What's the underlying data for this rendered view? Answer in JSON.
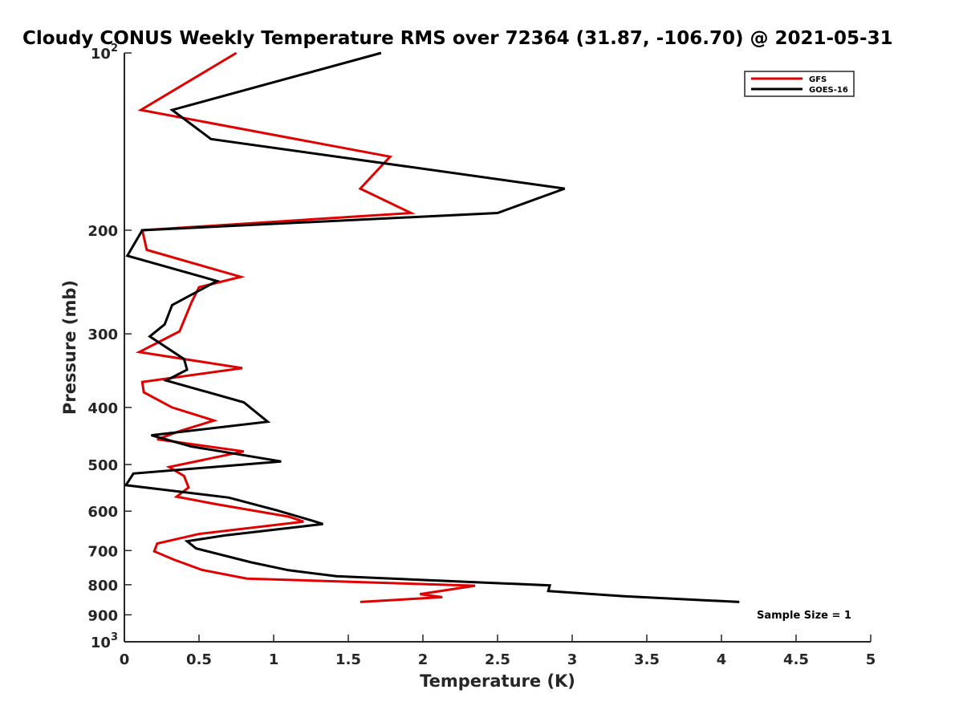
{
  "chart_data": {
    "type": "line",
    "title": "Cloudy CONUS Weekly Temperature RMS over 72364 (31.87, -106.70) @ 2021-05-31",
    "xlabel": "Temperature (K)",
    "ylabel": "Pressure (mb)",
    "xlim": [
      0,
      5
    ],
    "ylim": [
      100,
      1000
    ],
    "y_scale": "log",
    "y_reversed": true,
    "x_ticks": [
      "0",
      "0.5",
      "1",
      "1.5",
      "2",
      "2.5",
      "3",
      "3.5",
      "4",
      "4.5",
      "5"
    ],
    "y_ticks": [
      {
        "value": 100,
        "base": "10",
        "exp": "2"
      },
      {
        "value": 200,
        "label": "200"
      },
      {
        "value": 300,
        "label": "300"
      },
      {
        "value": 400,
        "label": "400"
      },
      {
        "value": 500,
        "label": "500"
      },
      {
        "value": 600,
        "label": "600"
      },
      {
        "value": 700,
        "label": "700"
      },
      {
        "value": 800,
        "label": "800"
      },
      {
        "value": 900,
        "label": "900"
      },
      {
        "value": 1000,
        "base": "10",
        "exp": "3"
      }
    ],
    "legend_position": "top-right",
    "grid": false,
    "annotation": "Sample Size = 1",
    "series": [
      {
        "name": "GFS",
        "color": "#e00000",
        "points": [
          [
            0.75,
            100
          ],
          [
            0.11,
            125
          ],
          [
            1.78,
            150
          ],
          [
            1.58,
            170
          ],
          [
            1.92,
            187
          ],
          [
            0.12,
            200
          ],
          [
            0.15,
            216
          ],
          [
            0.78,
            240
          ],
          [
            0.5,
            250
          ],
          [
            0.45,
            265
          ],
          [
            0.37,
            297
          ],
          [
            0.1,
            322
          ],
          [
            0.79,
            343
          ],
          [
            0.12,
            362
          ],
          [
            0.13,
            377
          ],
          [
            0.32,
            400
          ],
          [
            0.6,
            421
          ],
          [
            0.38,
            438
          ],
          [
            0.22,
            453
          ],
          [
            0.8,
            475
          ],
          [
            0.3,
            505
          ],
          [
            0.4,
            523
          ],
          [
            0.43,
            547
          ],
          [
            0.35,
            567
          ],
          [
            0.6,
            583
          ],
          [
            1.1,
            613
          ],
          [
            1.2,
            625
          ],
          [
            0.5,
            656
          ],
          [
            0.22,
            681
          ],
          [
            0.2,
            702
          ],
          [
            0.33,
            725
          ],
          [
            0.52,
            755
          ],
          [
            0.82,
            781
          ],
          [
            2.35,
            803
          ],
          [
            1.98,
            830
          ],
          [
            2.13,
            840
          ],
          [
            1.58,
            856
          ]
        ]
      },
      {
        "name": "GOES-16",
        "color": "#000000",
        "points": [
          [
            1.72,
            100
          ],
          [
            0.32,
            125
          ],
          [
            0.58,
            140
          ],
          [
            2.95,
            170
          ],
          [
            2.5,
            187
          ],
          [
            0.12,
            200
          ],
          [
            0.02,
            221
          ],
          [
            0.62,
            244
          ],
          [
            0.32,
            268
          ],
          [
            0.27,
            289
          ],
          [
            0.17,
            303
          ],
          [
            0.4,
            331
          ],
          [
            0.42,
            345
          ],
          [
            0.28,
            360
          ],
          [
            0.8,
            392
          ],
          [
            0.96,
            423
          ],
          [
            0.18,
            446
          ],
          [
            0.45,
            466
          ],
          [
            1.05,
            494
          ],
          [
            0.06,
            518
          ],
          [
            0.01,
            542
          ],
          [
            0.7,
            569
          ],
          [
            1.02,
            598
          ],
          [
            1.25,
            622
          ],
          [
            1.33,
            631
          ],
          [
            0.67,
            660
          ],
          [
            0.42,
            675
          ],
          [
            0.48,
            694
          ],
          [
            0.85,
            733
          ],
          [
            1.1,
            756
          ],
          [
            1.42,
            774
          ],
          [
            2.85,
            802
          ],
          [
            2.84,
            820
          ],
          [
            3.35,
            837
          ],
          [
            4.12,
            856
          ]
        ]
      }
    ]
  }
}
